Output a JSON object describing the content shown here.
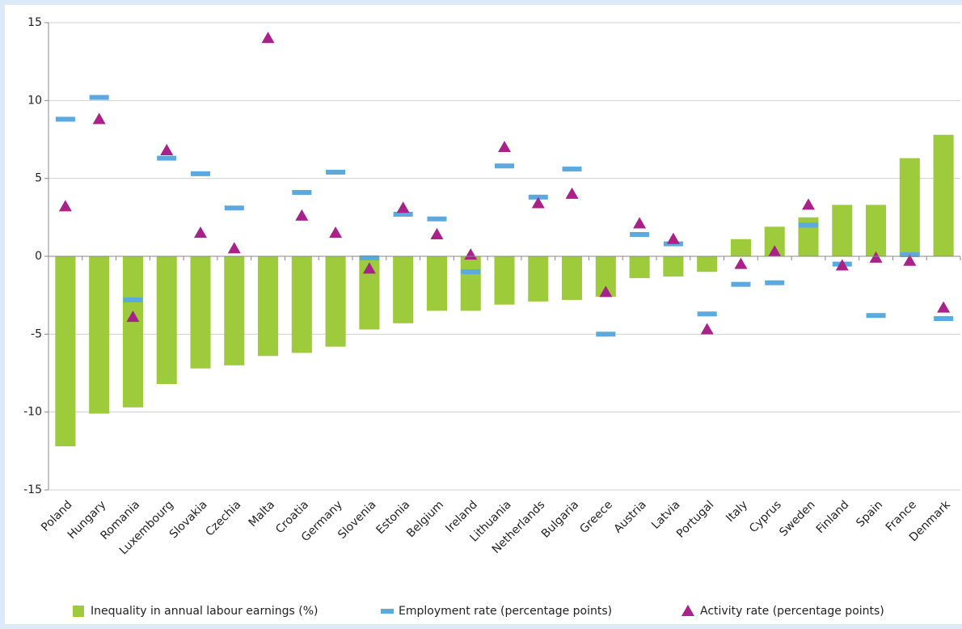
{
  "chart_data": {
    "type": "bar_markers",
    "categories": [
      "Poland",
      "Hungary",
      "Romania",
      "Luxembourg",
      "Slovakia",
      "Czechia",
      "Malta",
      "Croatia",
      "Germany",
      "Slovenia",
      "Estonia",
      "Belgium",
      "Ireland",
      "Lithuania",
      "Netherlands",
      "Bulgaria",
      "Greece",
      "Austria",
      "Latvia",
      "Portugal",
      "Italy",
      "Cyprus",
      "Sweden",
      "Finland",
      "Spain",
      "France",
      "Denmark"
    ],
    "series": [
      {
        "name": "Inequality in annual labour earnings (%)",
        "color": "#9dcb3c",
        "mark": "bar",
        "values": [
          -12.2,
          -10.1,
          -9.7,
          -8.2,
          -7.2,
          -7.0,
          -6.4,
          -6.2,
          -5.8,
          -4.7,
          -4.3,
          -3.5,
          -3.5,
          -3.1,
          -2.9,
          -2.8,
          -2.6,
          -1.4,
          -1.3,
          -1.0,
          1.1,
          1.9,
          2.5,
          3.3,
          3.3,
          6.3,
          7.8
        ]
      },
      {
        "name": "Employment rate (percentage points)",
        "color": "#5ba9de",
        "mark": "dash",
        "values": [
          8.8,
          10.2,
          -2.8,
          6.3,
          5.3,
          3.1,
          null,
          4.1,
          5.4,
          -0.1,
          2.7,
          2.4,
          -1.0,
          5.8,
          3.8,
          5.6,
          -5.0,
          1.4,
          0.8,
          -3.7,
          -1.8,
          -1.7,
          2.0,
          -0.5,
          -3.8,
          0.1,
          -4.0
        ]
      },
      {
        "name": "Activity rate (percentage points)",
        "color": "#a8228a",
        "mark": "triangle",
        "values": [
          3.2,
          8.8,
          -3.9,
          6.8,
          1.5,
          0.5,
          14.0,
          2.6,
          1.5,
          -0.8,
          3.1,
          1.4,
          0.1,
          7.0,
          3.4,
          4.0,
          -2.3,
          2.1,
          1.1,
          -4.7,
          -0.5,
          0.3,
          3.3,
          -0.6,
          -0.1,
          -0.3,
          -3.3
        ]
      }
    ],
    "ylim": [
      -15,
      15
    ],
    "yticks": [
      -15,
      -10,
      -5,
      0,
      5,
      10,
      15
    ],
    "grid": true
  }
}
